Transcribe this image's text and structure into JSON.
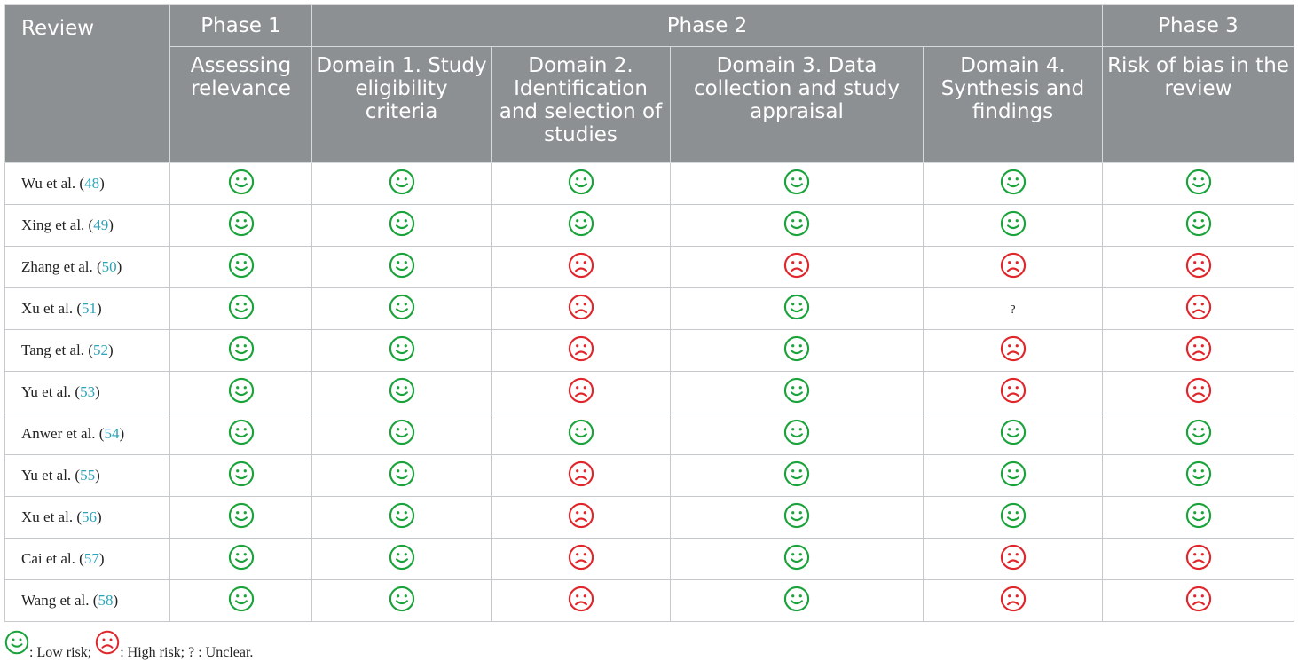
{
  "header": {
    "review": "Review",
    "phase1": "Phase 1",
    "phase2": "Phase 2",
    "phase3": "Phase 3",
    "sub": [
      "Assessing relevance",
      "Domain 1. Study eligibility criteria",
      "Domain 2. Identification and selection of studies",
      "Domain 3. Data collection and study appraisal",
      "Domain 4. Synthesis and findings",
      "Risk of bias in the review"
    ]
  },
  "rows": [
    {
      "name": "Wu et al. (",
      "ref": "48",
      "close": ")",
      "ratings": [
        "low",
        "low",
        "low",
        "low",
        "low",
        "low"
      ]
    },
    {
      "name": "Xing et al. (",
      "ref": "49",
      "close": ")",
      "ratings": [
        "low",
        "low",
        "low",
        "low",
        "low",
        "low"
      ]
    },
    {
      "name": "Zhang et al. (",
      "ref": "50",
      "close": ")",
      "ratings": [
        "low",
        "low",
        "high",
        "high",
        "high",
        "high"
      ]
    },
    {
      "name": "Xu et al. (",
      "ref": "51",
      "close": ")",
      "ratings": [
        "low",
        "low",
        "high",
        "low",
        "unclear",
        "high"
      ]
    },
    {
      "name": "Tang et al. (",
      "ref": "52",
      "close": ")",
      "ratings": [
        "low",
        "low",
        "high",
        "low",
        "high",
        "high"
      ]
    },
    {
      "name": "Yu et al. (",
      "ref": "53",
      "close": ")",
      "ratings": [
        "low",
        "low",
        "high",
        "low",
        "high",
        "high"
      ]
    },
    {
      "name": "Anwer et al. (",
      "ref": "54",
      "close": ")",
      "ratings": [
        "low",
        "low",
        "low",
        "low",
        "low",
        "low"
      ]
    },
    {
      "name": "Yu et al. (",
      "ref": "55",
      "close": ")",
      "ratings": [
        "low",
        "low",
        "high",
        "low",
        "low",
        "low"
      ]
    },
    {
      "name": "Xu et al. (",
      "ref": "56",
      "close": ")",
      "ratings": [
        "low",
        "low",
        "high",
        "low",
        "low",
        "low"
      ]
    },
    {
      "name": "Cai et al. (",
      "ref": "57",
      "close": ")",
      "ratings": [
        "low",
        "low",
        "high",
        "low",
        "high",
        "high"
      ]
    },
    {
      "name": "Wang et al. (",
      "ref": "58",
      "close": ")",
      "ratings": [
        "low",
        "low",
        "high",
        "low",
        "high",
        "high"
      ]
    }
  ],
  "unclear_symbol": "?",
  "legend": {
    "low_text": ": Low risk; ",
    "high_text": ": High risk; ? : Unclear."
  },
  "colors": {
    "low": "#1aa33a",
    "high": "#e0262b",
    "header_bg": "#8c9092",
    "ref_link": "#2ba3b8"
  }
}
